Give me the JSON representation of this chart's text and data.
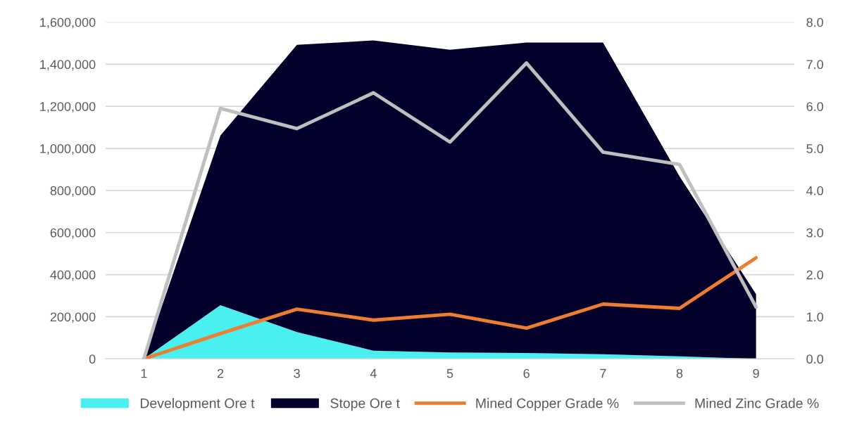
{
  "chart_data": {
    "type": "area",
    "stacked": true,
    "categories": [
      "1",
      "2",
      "3",
      "4",
      "5",
      "6",
      "7",
      "8",
      "9"
    ],
    "series": [
      {
        "name": "Development Ore t",
        "color": "#4af0f0",
        "values": [
          0,
          255000,
          127000,
          39000,
          30000,
          28000,
          22000,
          12000,
          0
        ]
      },
      {
        "name": "Stope Ore t",
        "color": "#03002b",
        "values": [
          0,
          806000,
          1365000,
          1474000,
          1439000,
          1475000,
          1481000,
          855000,
          308000
        ]
      },
      {
        "name": "Mined Copper Grade %",
        "type": "line",
        "axis": "y2",
        "color": "#ed7d31",
        "values": [
          0,
          0.6,
          1.18,
          0.92,
          1.06,
          0.73,
          1.3,
          1.2,
          2.4
        ]
      },
      {
        "name": "Mined Zinc Grade %",
        "type": "line",
        "axis": "y2",
        "color": "#bfbfbf",
        "values": [
          0,
          5.95,
          5.47,
          6.32,
          5.15,
          7.03,
          4.91,
          4.62,
          1.23
        ]
      }
    ],
    "ylim": [
      0,
      1600000
    ],
    "yticks": [
      {
        "value": 0,
        "label": "0"
      },
      {
        "value": 200000,
        "label": "200,000"
      },
      {
        "value": 400000,
        "label": "400,000"
      },
      {
        "value": 600000,
        "label": "600,000"
      },
      {
        "value": 800000,
        "label": "800,000"
      },
      {
        "value": 1000000,
        "label": "1,000,000"
      },
      {
        "value": 1200000,
        "label": "1,200,000"
      },
      {
        "value": 1400000,
        "label": "1,400,000"
      },
      {
        "value": 1600000,
        "label": "1,600,000"
      }
    ],
    "y2lim": [
      0,
      8
    ],
    "y2ticks": [
      {
        "value": 0,
        "label": "0.0"
      },
      {
        "value": 1,
        "label": "1.0"
      },
      {
        "value": 2,
        "label": "2.0"
      },
      {
        "value": 3,
        "label": "3.0"
      },
      {
        "value": 4,
        "label": "4.0"
      },
      {
        "value": 5,
        "label": "5.0"
      },
      {
        "value": 6,
        "label": "6.0"
      },
      {
        "value": 7,
        "label": "7.0"
      },
      {
        "value": 8,
        "label": "8.0"
      }
    ],
    "grid": "y",
    "legend": "bottom"
  }
}
